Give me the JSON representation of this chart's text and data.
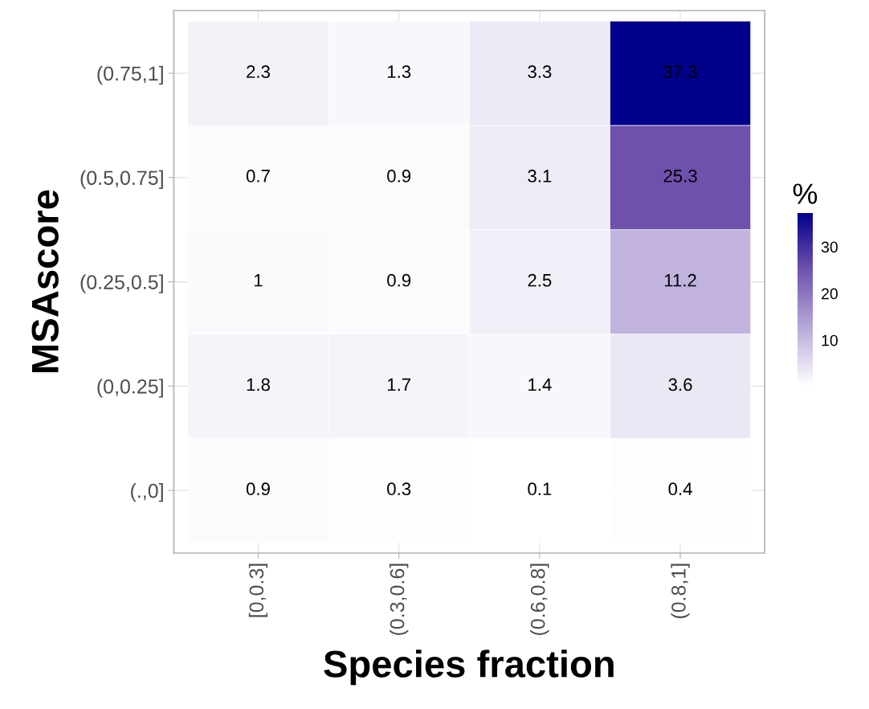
{
  "chart_data": {
    "type": "heatmap",
    "xlabel": "Species fraction",
    "ylabel": "MSAscore",
    "clabel": "%",
    "categories": [
      "[0,0.3]",
      "(0.3,0.6]",
      "(0.6,0.8]",
      "(0.8,1]"
    ],
    "y_categories": [
      "(0.75,1]",
      "(0.5,0.75]",
      "(0.25,0.5]",
      "(0,0.25]",
      "(.,0]"
    ],
    "cells": [
      [
        2.3,
        1.3,
        3.3,
        37.3
      ],
      [
        0.7,
        0.9,
        3.1,
        25.3
      ],
      [
        1,
        0.9,
        2.5,
        11.2
      ],
      [
        1.8,
        1.7,
        1.4,
        3.6
      ],
      [
        0.9,
        0.3,
        0.1,
        0.4
      ]
    ],
    "clim": [
      0.1,
      37.3
    ],
    "cticks": [
      10,
      20,
      30
    ],
    "data_labels": true,
    "grid": true
  }
}
